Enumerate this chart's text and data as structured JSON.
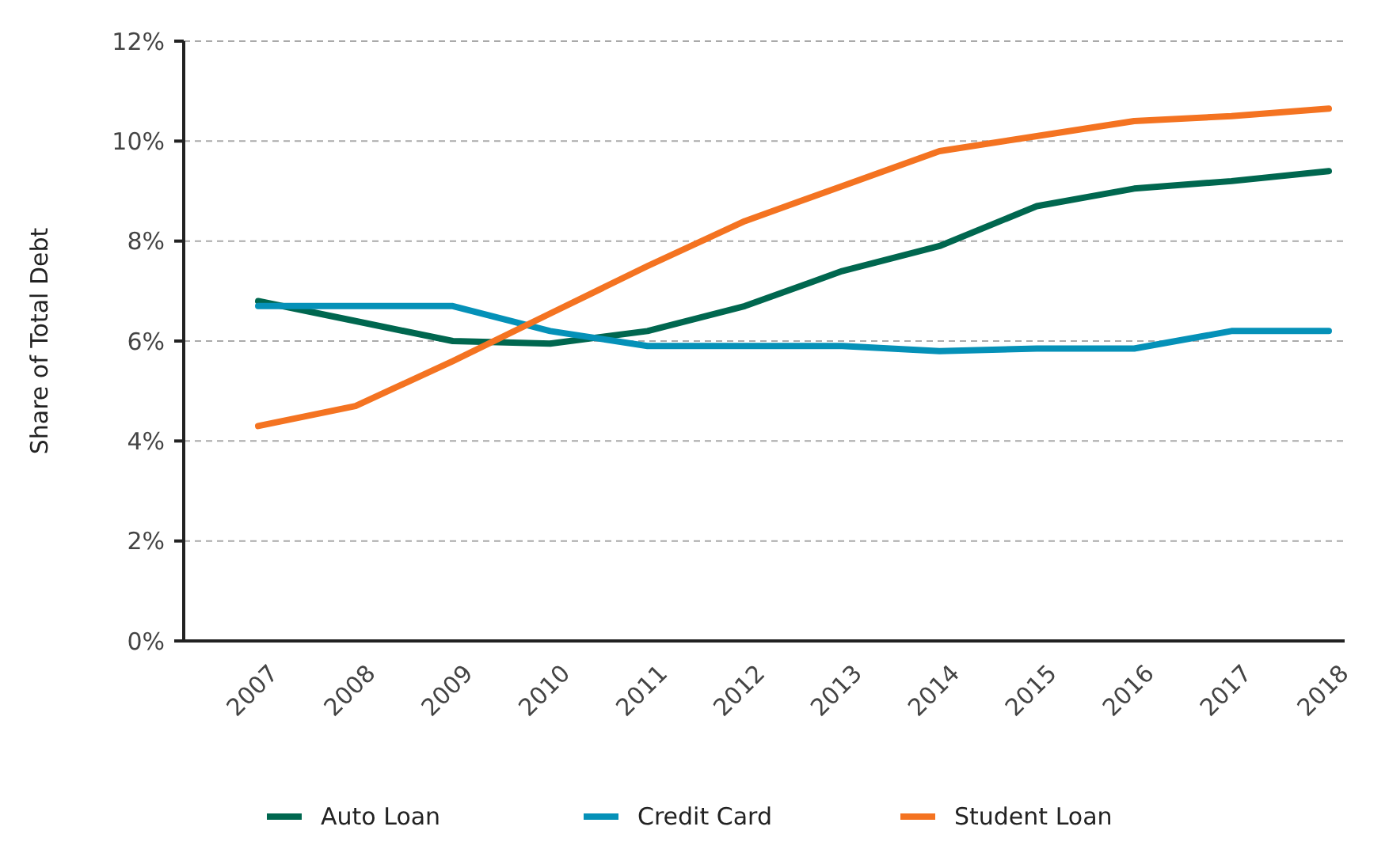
{
  "chart_data": {
    "type": "line",
    "ylabel": "Share of Total Debt",
    "categories": [
      "2007",
      "2008",
      "2009",
      "2010",
      "2011",
      "2012",
      "2013",
      "2014",
      "2015",
      "2016",
      "2017",
      "2018"
    ],
    "series": [
      {
        "name": "Auto Loan",
        "color": "#00674f",
        "values": [
          6.8,
          6.4,
          6.0,
          5.95,
          6.2,
          6.7,
          7.4,
          7.9,
          8.7,
          9.05,
          9.2,
          9.4
        ]
      },
      {
        "name": "Credit Card",
        "color": "#0591b8",
        "values": [
          6.7,
          6.7,
          6.7,
          6.2,
          5.9,
          5.9,
          5.9,
          5.8,
          5.85,
          5.85,
          6.2,
          6.2
        ]
      },
      {
        "name": "Student Loan",
        "color": "#f47321",
        "values": [
          4.3,
          4.7,
          5.6,
          6.55,
          7.5,
          8.4,
          9.1,
          9.8,
          10.1,
          10.4,
          10.5,
          10.65
        ]
      }
    ],
    "ylim": [
      0,
      12
    ],
    "yticks": [
      {
        "value": 0,
        "label": "0%"
      },
      {
        "value": 2,
        "label": "2%"
      },
      {
        "value": 4,
        "label": "4%"
      },
      {
        "value": 6,
        "label": "6%"
      },
      {
        "value": 8,
        "label": "8%"
      },
      {
        "value": 10,
        "label": "10%"
      },
      {
        "value": 12,
        "label": "12%"
      }
    ],
    "grid": "y",
    "legend": "bottom",
    "line_style": "solid",
    "marker": "none"
  }
}
